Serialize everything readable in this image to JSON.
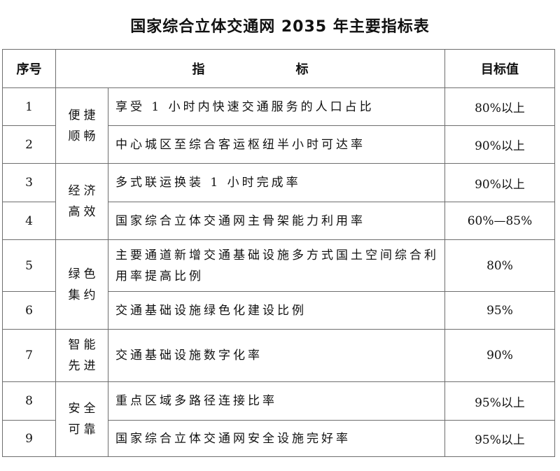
{
  "title": "国家综合立体交通网 2035 年主要指标表",
  "headers": {
    "index": "序号",
    "indicator_left": "指",
    "indicator_right": "标",
    "target": "目标值"
  },
  "categories": [
    {
      "line1": "便捷",
      "line2": "顺畅"
    },
    {
      "line1": "经济",
      "line2": "高效"
    },
    {
      "line1": "绿色",
      "line2": "集约"
    },
    {
      "line1": "智能",
      "line2": "先进"
    },
    {
      "line1": "安全",
      "line2": "可靠"
    }
  ],
  "rows": [
    {
      "no": "1",
      "indicator": "享受 1 小时内快速交通服务的人口占比",
      "target": "80%以上"
    },
    {
      "no": "2",
      "indicator": "中心城区至综合客运枢纽半小时可达率",
      "target": "90%以上"
    },
    {
      "no": "3",
      "indicator": "多式联运换装 1 小时完成率",
      "target": "90%以上"
    },
    {
      "no": "4",
      "indicator": "国家综合立体交通网主骨架能力利用率",
      "target": "60%—85%"
    },
    {
      "no": "5",
      "indicator": "主要通道新增交通基础设施多方式国土空间综合利用率提高比例",
      "target": "80%"
    },
    {
      "no": "6",
      "indicator": "交通基础设施绿色化建设比例",
      "target": "95%"
    },
    {
      "no": "7",
      "indicator": "交通基础设施数字化率",
      "target": "90%"
    },
    {
      "no": "8",
      "indicator": "重点区域多路径连接比率",
      "target": "95%以上"
    },
    {
      "no": "9",
      "indicator": "国家综合立体交通网安全设施完好率",
      "target": "95%以上"
    }
  ]
}
